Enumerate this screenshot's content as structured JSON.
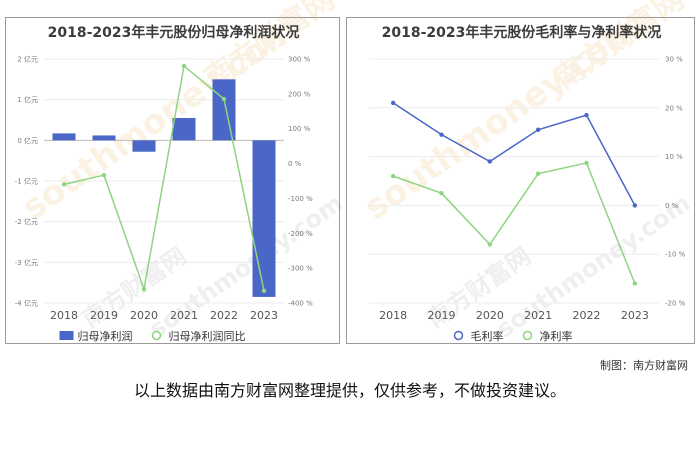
{
  "chart_data": [
    {
      "type": "bar",
      "title": "2018-2023年丰元股份归母净利润状况",
      "categories": [
        "2018",
        "2019",
        "2020",
        "2021",
        "2022",
        "2023"
      ],
      "series": [
        {
          "name": "归母净利润",
          "type": "bar",
          "axis": "left",
          "color": "#4a66c6",
          "values": [
            0.17,
            0.12,
            -0.28,
            0.55,
            1.5,
            -3.85
          ]
        },
        {
          "name": "归母净利润同比",
          "type": "line",
          "axis": "right",
          "color": "#8fd482",
          "values": [
            -60,
            -33,
            -360,
            280,
            185,
            -365
          ]
        }
      ],
      "y_left": {
        "min": -4,
        "max": 2,
        "ticks": [
          2,
          1,
          0,
          -1,
          -2,
          -3,
          -4
        ],
        "tick_labels": [
          "2 亿元",
          "1 亿元",
          "0 亿元",
          "-1 亿元",
          "-2 亿元",
          "-3 亿元",
          "-4 亿元"
        ]
      },
      "y_right": {
        "min": -400,
        "max": 300,
        "ticks": [
          300,
          200,
          100,
          0,
          -100,
          -200,
          -300,
          -400
        ],
        "tick_labels": [
          "300 %",
          "200 %",
          "100 %",
          "0 %",
          "-100 %",
          "-200 %",
          "-300 %",
          "-400 %"
        ]
      },
      "grid": true,
      "legend": "bottom"
    },
    {
      "type": "line",
      "title": "2018-2023年丰元股份毛利率与净利率状况",
      "categories": [
        "2018",
        "2019",
        "2020",
        "2021",
        "2022",
        "2023"
      ],
      "series": [
        {
          "name": "毛利率",
          "color": "#4a66c6",
          "values": [
            21,
            14.5,
            9,
            15.5,
            18.5,
            0
          ]
        },
        {
          "name": "净利率",
          "color": "#8fd482",
          "values": [
            6,
            2.5,
            -8,
            6.5,
            8.7,
            -16
          ]
        }
      ],
      "y_right": {
        "min": -20,
        "max": 30,
        "ticks": [
          30,
          20,
          10,
          0,
          -10,
          -20
        ],
        "tick_labels": [
          "30 %",
          "20 %",
          "10 %",
          "0 %",
          "-10 %",
          "-20 %"
        ]
      },
      "grid": true,
      "legend": "bottom"
    }
  ],
  "watermark": {
    "brand": "南方财富网",
    "domain": "southmoney.com"
  },
  "credit": "制图：南方财富网",
  "disclaimer": "以上数据由南方财富网整理提供，仅供参考，不做投资建议。"
}
